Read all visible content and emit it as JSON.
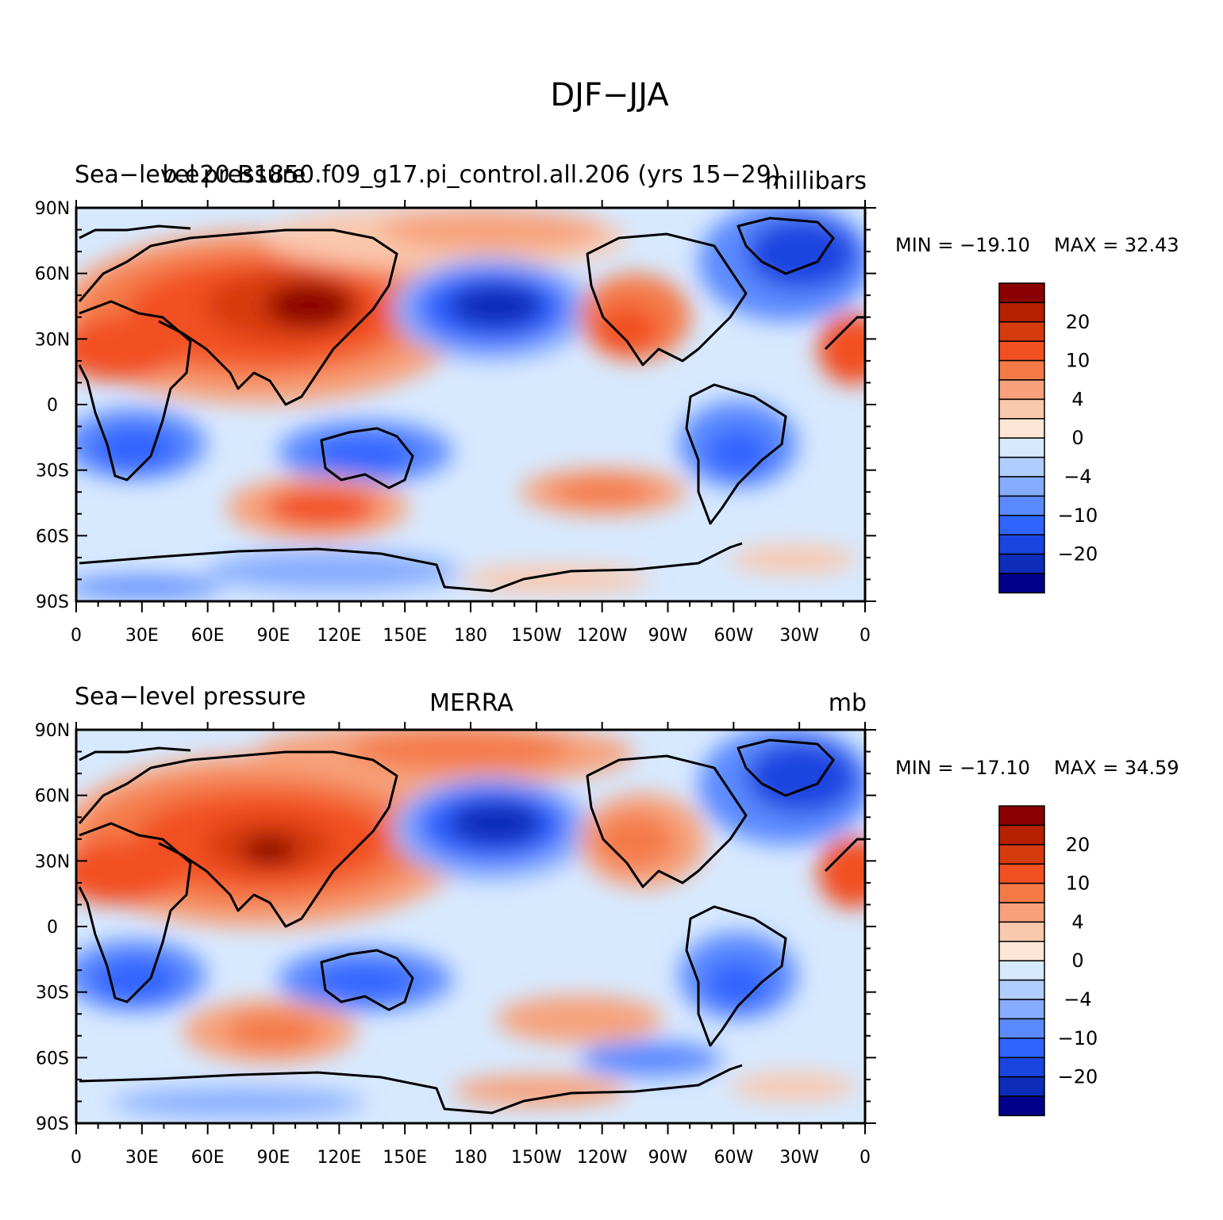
{
  "figure": {
    "title": "DJF−JJA"
  },
  "panels": [
    {
      "id": "model",
      "left_title": "Sea−level pressure",
      "center_title": "b.e20.B1850.f09_g17.pi_control.all.206 (yrs 15−29)",
      "units": "millibars",
      "min_label": "MIN = −19.10",
      "max_label": "MAX =   32.43",
      "min": -19.1,
      "max": 32.43
    },
    {
      "id": "obs",
      "left_title": "Sea−level pressure",
      "center_title": "MERRA",
      "units": "mb",
      "min_label": "MIN = −17.10",
      "max_label": "MAX =   34.59",
      "min": -17.1,
      "max": 34.59
    }
  ],
  "axes": {
    "lon_labels": [
      "0",
      "30E",
      "60E",
      "90E",
      "120E",
      "150E",
      "180",
      "150W",
      "120W",
      "90W",
      "60W",
      "30W",
      "0"
    ],
    "lat_labels": [
      "90N",
      "60N",
      "30N",
      "0",
      "30S",
      "60S",
      "90S"
    ]
  },
  "colorbar": {
    "labels": [
      "20",
      "10",
      "4",
      "0",
      "−4",
      "−10",
      "−20"
    ],
    "colors": [
      "#8b0000",
      "#b52000",
      "#d63a0f",
      "#f25022",
      "#f47a48",
      "#f7a27c",
      "#fac8ad",
      "#fde6d6",
      "#d7e9ff",
      "#b0cdff",
      "#86acff",
      "#5b8aff",
      "#3064ff",
      "#1a45e0",
      "#0d2cb8",
      "#00008b"
    ]
  }
}
